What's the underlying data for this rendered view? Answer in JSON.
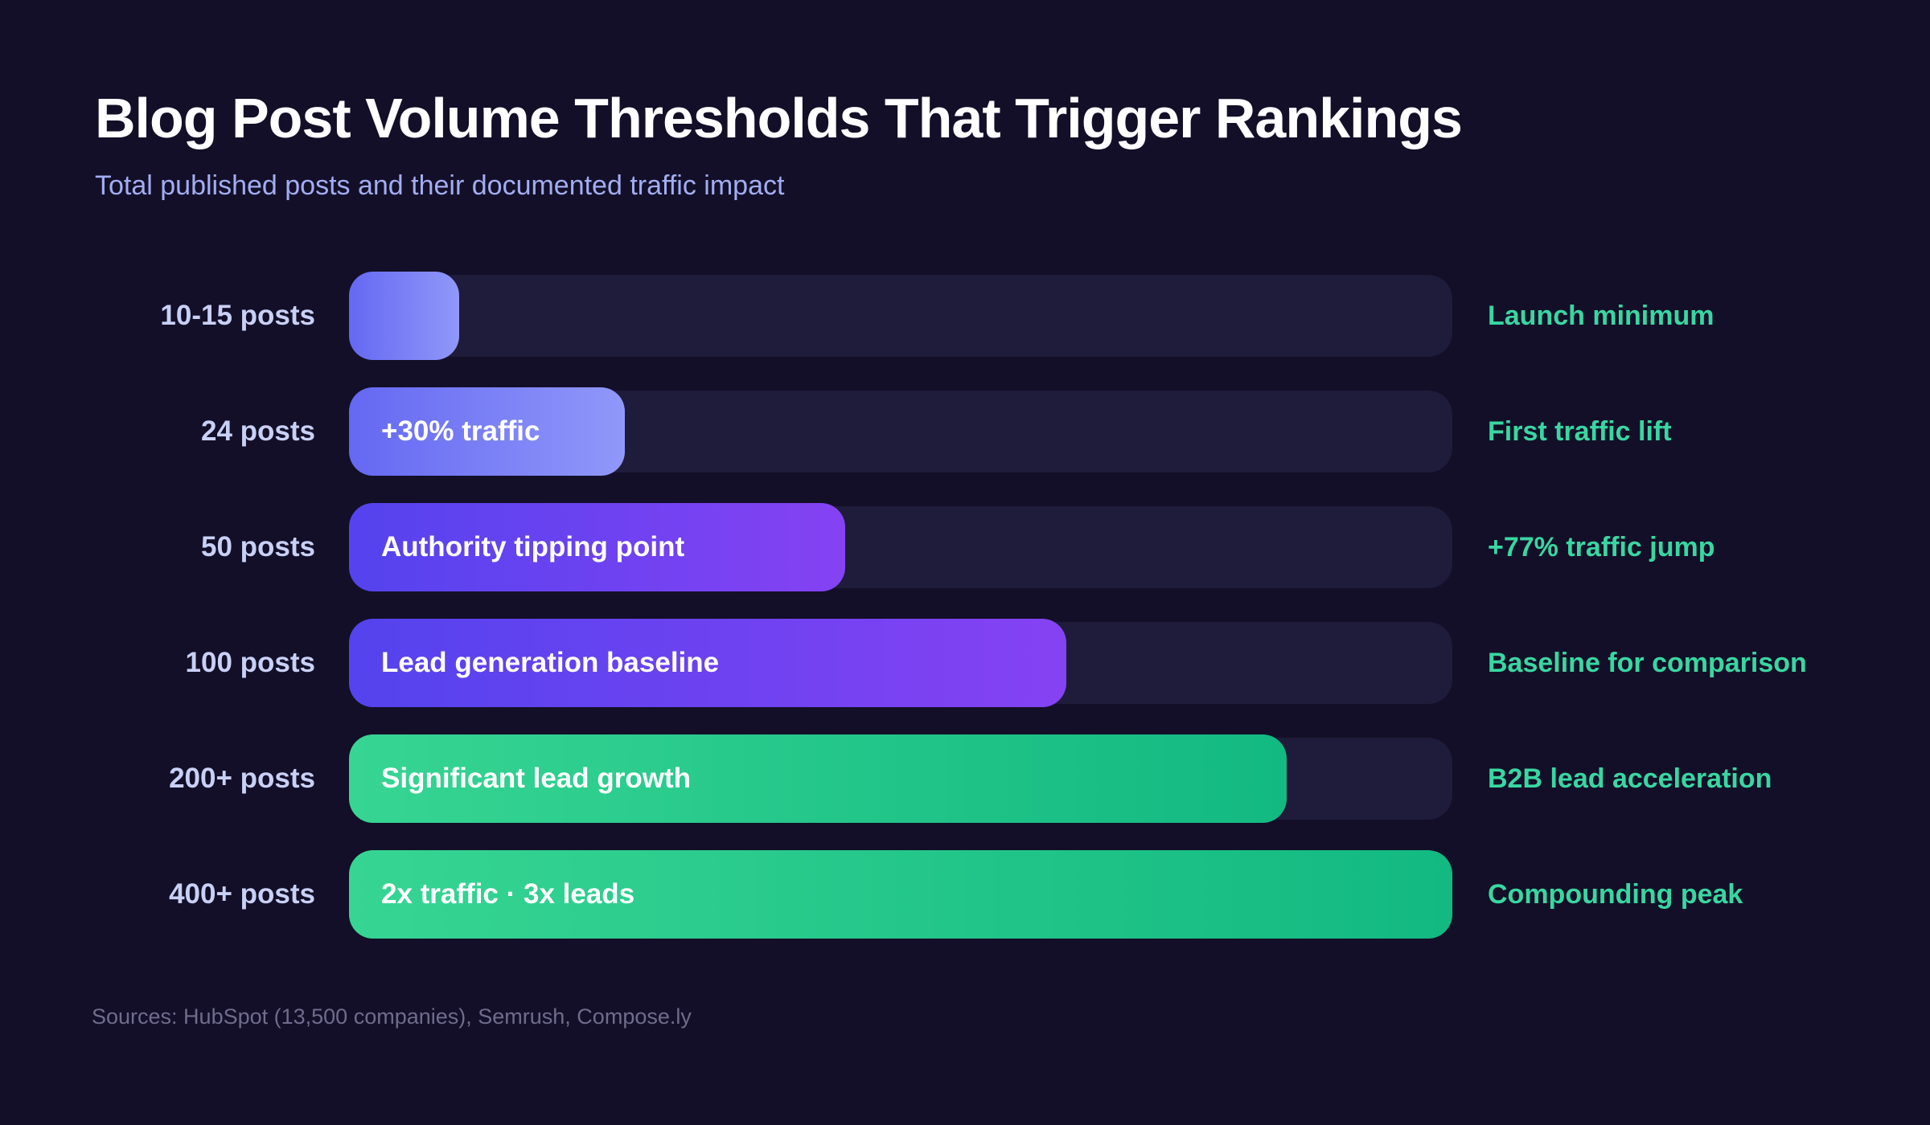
{
  "header": {
    "title": "Blog Post Volume Thresholds That Trigger Rankings",
    "subtitle": "Total published posts and their documented traffic impact"
  },
  "footer": {
    "source_note": "Sources: HubSpot (13,500 companies), Semrush, Compose.ly"
  },
  "colors": {
    "background": "#130f28",
    "track": "#1f1b3a",
    "title": "#ffffff",
    "subtitle": "#a3adf2",
    "category_label": "#c9d0f6",
    "annotation": "#38d7a1",
    "source_note": "#6f6c8c",
    "indigo_gradient": [
      "#6568f2",
      "#9098f9"
    ],
    "violet_gradient": [
      "#5443ee",
      "#8542f3"
    ],
    "green_gradient": [
      "#37d593",
      "#12b981"
    ]
  },
  "chart_data": {
    "type": "bar",
    "orientation": "horizontal",
    "title": "Blog Post Volume Thresholds That Trigger Rankings",
    "subtitle": "Total published posts and their documented traffic impact",
    "grid": false,
    "legend_position": "none",
    "x_range_pct": [
      0,
      100
    ],
    "categories": [
      "10-15 posts",
      "24 posts",
      "50 posts",
      "100 posts",
      "200+ posts",
      "400+ posts"
    ],
    "rows": [
      {
        "category": "10-15 posts",
        "value_pct": 10,
        "bar_label": "",
        "annotation": "Launch minimum",
        "color": "indigo"
      },
      {
        "category": "24 posts",
        "value_pct": 25,
        "bar_label": "+30% traffic",
        "annotation": "First traffic lift",
        "color": "indigo"
      },
      {
        "category": "50 posts",
        "value_pct": 45,
        "bar_label": "Authority tipping point",
        "annotation": "+77% traffic jump",
        "color": "violet"
      },
      {
        "category": "100 posts",
        "value_pct": 65,
        "bar_label": "Lead generation baseline",
        "annotation": "Baseline for comparison",
        "color": "violet"
      },
      {
        "category": "200+ posts",
        "value_pct": 85,
        "bar_label": "Significant lead growth",
        "annotation": "B2B lead acceleration",
        "color": "green"
      },
      {
        "category": "400+ posts",
        "value_pct": 100,
        "bar_label": "2x traffic · 3x leads",
        "annotation": "Compounding peak",
        "color": "green"
      }
    ]
  }
}
